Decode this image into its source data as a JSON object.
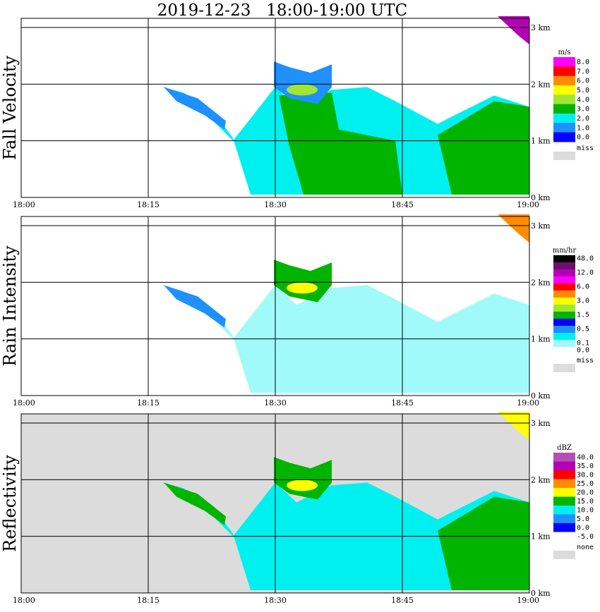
{
  "title": "2019-12-23   18:00-19:00 UTC",
  "x_ticks": [
    "18:00",
    "18:15",
    "18:30",
    "18:45",
    "19:00"
  ],
  "km_ticks": [
    "0 km",
    "1 km",
    "2 km",
    "3 km"
  ],
  "chart_data": [
    {
      "type": "heatmap",
      "title": "2019-12-23   18:00-19:00 UTC",
      "ylabel": "Fall Velocity",
      "unit": "m/s",
      "x": [
        "18:00",
        "18:15",
        "18:30",
        "18:45",
        "19:00"
      ],
      "y": [
        "0 km",
        "1 km",
        "2 km",
        "3 km"
      ],
      "background": "#ffffff",
      "legend": [
        {
          "label": "8.0",
          "color": "#ff00ff"
        },
        {
          "label": "7.0",
          "color": "#ff0000"
        },
        {
          "label": "6.0",
          "color": "#ff8c00"
        },
        {
          "label": "5.0",
          "color": "#ffff00"
        },
        {
          "label": "4.0",
          "color": "#a0e632"
        },
        {
          "label": "3.0",
          "color": "#00b400"
        },
        {
          "label": "2.0",
          "color": "#00f0f0"
        },
        {
          "label": "1.0",
          "color": "#1e90ff"
        },
        {
          "label": "0.0",
          "color": "#0000ff"
        }
      ],
      "missing": {
        "label": "miss",
        "color": "#dcdcdc"
      }
    },
    {
      "type": "heatmap",
      "ylabel": "Rain Intensity",
      "unit": "mm/hr",
      "x": [
        "18:00",
        "18:15",
        "18:30",
        "18:45",
        "19:00"
      ],
      "y": [
        "0 km",
        "1 km",
        "2 km",
        "3 km"
      ],
      "background": "#ffffff",
      "legend": [
        {
          "label": "48.0",
          "color": "#000000"
        },
        {
          "label": "",
          "color": "#6e0f6e"
        },
        {
          "label": "12.0",
          "color": "#b400b4"
        },
        {
          "label": "",
          "color": "#ff00ff"
        },
        {
          "label": "6.0",
          "color": "#ff0000"
        },
        {
          "label": "",
          "color": "#ff8c00"
        },
        {
          "label": "3.0",
          "color": "#ffff00"
        },
        {
          "label": "",
          "color": "#a0e632"
        },
        {
          "label": "1.5",
          "color": "#00b400"
        },
        {
          "label": "",
          "color": "#0000ff"
        },
        {
          "label": "0.5",
          "color": "#1e90ff"
        },
        {
          "label": "",
          "color": "#00f0f0"
        },
        {
          "label": "0.1",
          "color": "#a0fafa"
        },
        {
          "label": "0.0",
          "color": "#ffffff"
        }
      ],
      "missing": {
        "label": "miss",
        "color": "#dcdcdc"
      }
    },
    {
      "type": "heatmap",
      "ylabel": "Reflectivity",
      "unit": "dBZ",
      "x": [
        "18:00",
        "18:15",
        "18:30",
        "18:45",
        "19:00"
      ],
      "y": [
        "0 km",
        "1 km",
        "2 km",
        "3 km"
      ],
      "background": "#dcdcdc",
      "legend": [
        {
          "label": "40.0",
          "color": "#b450b4"
        },
        {
          "label": "35.0",
          "color": "#b400b4"
        },
        {
          "label": "30.0",
          "color": "#ff0000"
        },
        {
          "label": "25.0",
          "color": "#ff8c00"
        },
        {
          "label": "20.0",
          "color": "#ffff00"
        },
        {
          "label": "15.0",
          "color": "#00b400"
        },
        {
          "label": "10.0",
          "color": "#00f0f0"
        },
        {
          "label": "5.0",
          "color": "#1e90ff"
        },
        {
          "label": "0.0",
          "color": "#0000ff"
        },
        {
          "label": "-5.0",
          "color": "#ffffff"
        }
      ],
      "missing": {
        "label": "none",
        "color": "#dcdcdc"
      }
    }
  ]
}
